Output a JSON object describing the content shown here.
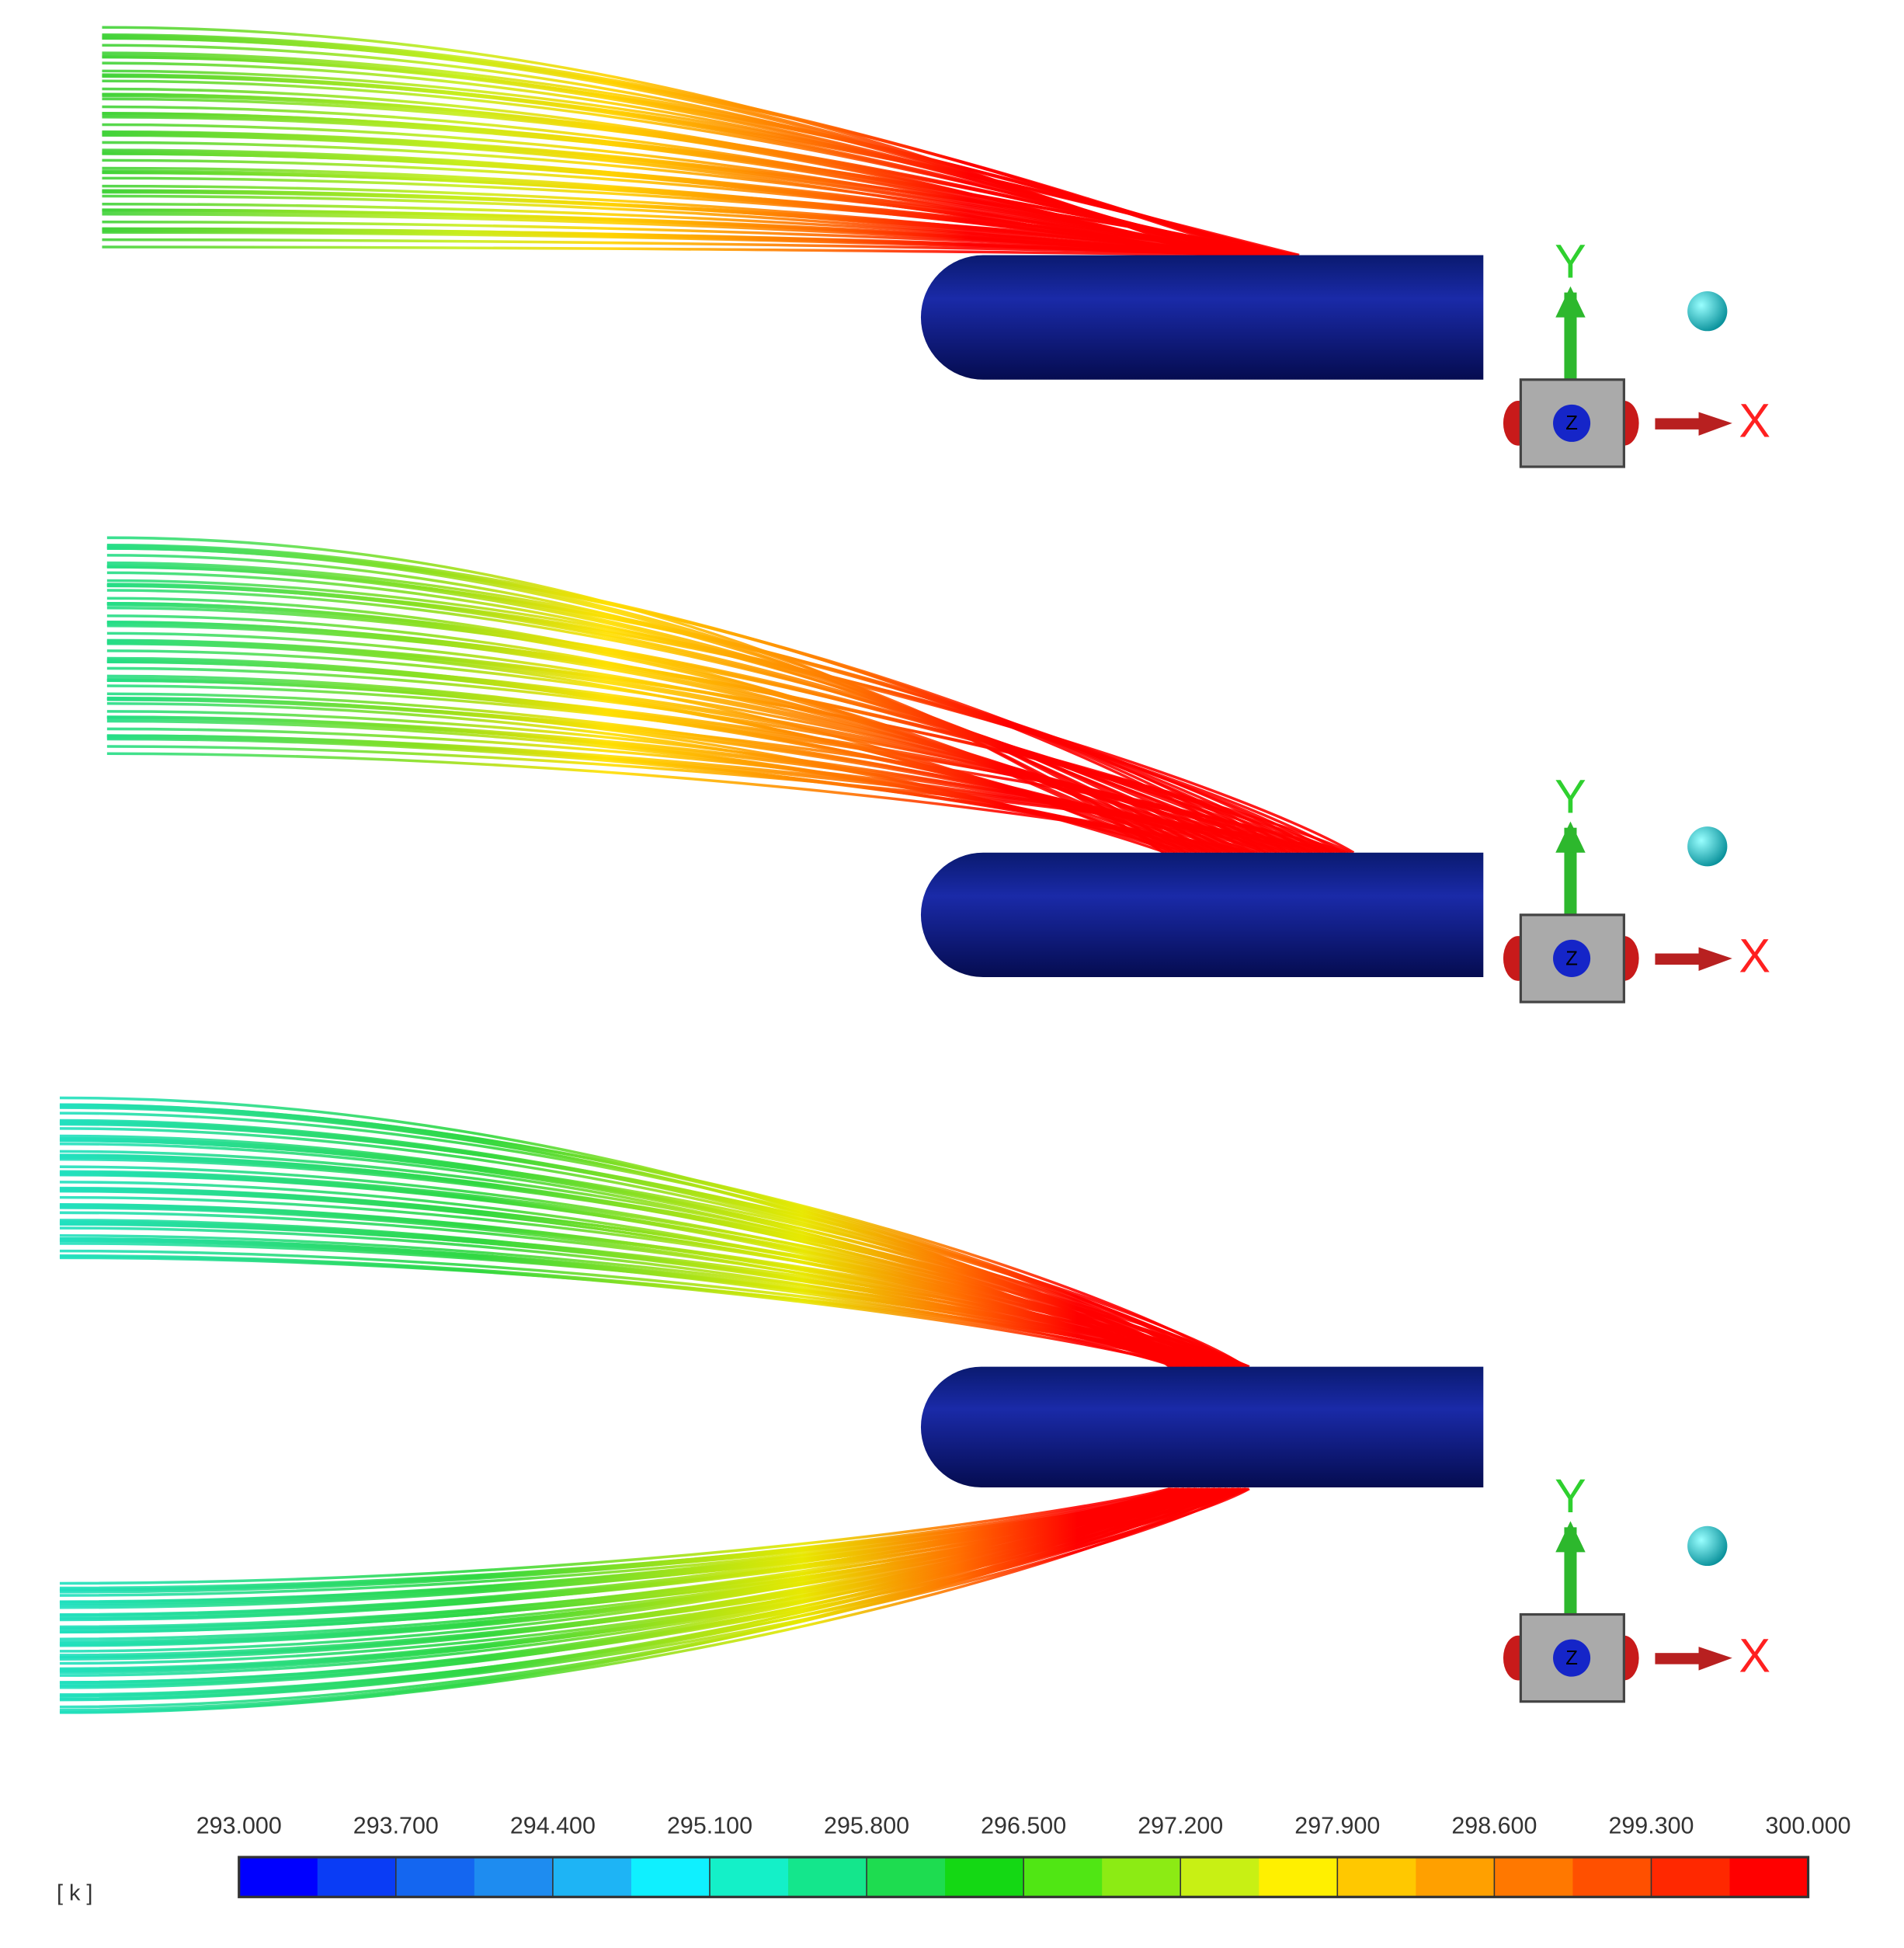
{
  "triads": [
    {
      "x": "X",
      "y": "Y",
      "z": "Z"
    },
    {
      "x": "X",
      "y": "Y",
      "z": "Z"
    },
    {
      "x": "X",
      "y": "Y",
      "z": "Z"
    }
  ],
  "colorbar": {
    "unit": "[ k ]",
    "ticks": [
      {
        "value": 293,
        "label": "293.000"
      },
      {
        "value": 293.7,
        "label": "293.700"
      },
      {
        "value": 294.4,
        "label": "294.400"
      },
      {
        "value": 295.1,
        "label": "295.100"
      },
      {
        "value": 295.8,
        "label": "295.800"
      },
      {
        "value": 296.5,
        "label": "296.500"
      },
      {
        "value": 297.2,
        "label": "297.200"
      },
      {
        "value": 297.9,
        "label": "297.900"
      },
      {
        "value": 298.6,
        "label": "298.600"
      },
      {
        "value": 299.3,
        "label": "299.300"
      },
      {
        "value": 300,
        "label": "300.000"
      }
    ]
  }
}
